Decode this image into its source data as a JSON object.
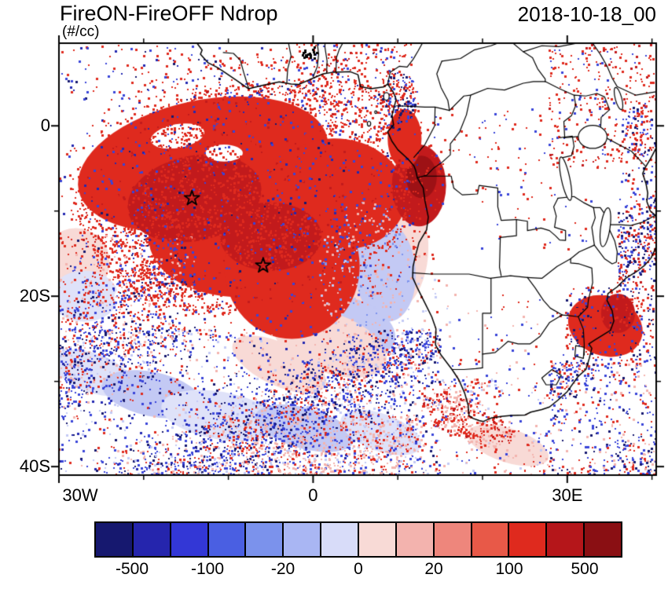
{
  "header": {
    "title": "FireON-FireOFF Ndrop",
    "units": "(#/cc)",
    "timestamp": "2018-10-18_00"
  },
  "chart_data": {
    "type": "heatmap",
    "title": "FireON-FireOFF Ndrop",
    "units": "#/cc",
    "timestamp": "2018-10-18_00",
    "description": "Filled lat-lon map over Africa and the South Atlantic of the difference in cloud droplet number (FireON minus FireOFF). Large positive (red) anomaly over the southeast Atlantic stratocumulus region reaching the Angola/Congo coast; pale pink/lavender crescent on its eastern flank; speckled positive/negative noise over the Southern Ocean storm track, East Africa and the sub-tropics.",
    "map_extent": {
      "lon_min": -30,
      "lon_max": 40.5,
      "lat_min": -41,
      "lat_max": 9.7
    },
    "x_axis": {
      "tick_labels": [
        {
          "label": "30W",
          "lon": -30
        },
        {
          "label": "0",
          "lon": 0
        },
        {
          "label": "30E",
          "lon": 30
        }
      ],
      "minor_ticks_lon": [
        -20,
        -10,
        10,
        20,
        40
      ]
    },
    "y_axis": {
      "tick_labels": [
        {
          "label": "0",
          "lat": 0
        },
        {
          "label": "20S",
          "lat": -20
        },
        {
          "label": "40S",
          "lat": -40
        }
      ],
      "minor_ticks_lat": [
        -10,
        -30
      ]
    },
    "grid": false,
    "legend_position": "bottom",
    "colorbar": {
      "orientation": "horizontal",
      "boundary_values": [
        -500,
        -200,
        -100,
        -50,
        -20,
        -10,
        0,
        10,
        20,
        50,
        100,
        200,
        500
      ],
      "labeled_values": [
        "-500",
        "-100",
        "-20",
        "0",
        "20",
        "100",
        "500"
      ],
      "labeled_boundary_indices": [
        1,
        3,
        5,
        7,
        9,
        11,
        13
      ],
      "segment_colors": [
        "#16186f",
        "#2525ad",
        "#3337d6",
        "#4a5fe2",
        "#7b92ec",
        "#a9b6f3",
        "#d8dcf9",
        "#f8dad6",
        "#f3b3ae",
        "#ee867c",
        "#e85948",
        "#df2a1e",
        "#b5161a",
        "#8a0f13"
      ]
    },
    "markers": [
      {
        "symbol": "open-star",
        "lon": -14.3,
        "lat": -8.5
      },
      {
        "symbol": "open-star",
        "lon": -5.9,
        "lat": -16.4
      }
    ],
    "palette": {
      "red": "#df2a1e",
      "red_dark": "#c21a1c",
      "red_deep": "#9d1115",
      "pink": "#f3b3ae",
      "pink_pale": "#f8dad6",
      "lavender": "#c3c9f4",
      "lavender_pale": "#dfe2f9",
      "blue_light": "#7b92ec",
      "blue": "#3944d8",
      "blue_dark": "#2328b0",
      "navy": "#16186f",
      "black": "#000000",
      "white": "#ffffff"
    },
    "field_regions": {
      "solid": [
        {
          "c": [
            7,
            -13
          ],
          "rad": [
            6.5,
            9.5
          ],
          "rot": 10,
          "color": "pink_pale"
        },
        {
          "c": [
            8.5,
            -17
          ],
          "rad": [
            3.6,
            6
          ],
          "rot": 5,
          "color": "lavender"
        },
        {
          "c": [
            5,
            -23.5
          ],
          "rad": [
            5,
            3
          ],
          "rot": -25,
          "color": "lavender"
        },
        {
          "c": [
            2,
            -25.5
          ],
          "rad": [
            7,
            3.5
          ],
          "rot": -20,
          "color": "pink_pale"
        },
        {
          "c": [
            -4,
            -28
          ],
          "rad": [
            6,
            2.5
          ],
          "rot": -25,
          "color": "pink_pale"
        },
        {
          "c": [
            -28,
            -16
          ],
          "rad": [
            4,
            4
          ],
          "rot": 0,
          "color": "pink_pale"
        },
        {
          "c": [
            -27,
            -20
          ],
          "rad": [
            4,
            3
          ],
          "rot": 0,
          "color": "lavender_pale"
        },
        {
          "c": [
            -26,
            -29
          ],
          "rad": [
            5,
            2.3
          ],
          "rot": -20,
          "color": "lavender_pale"
        },
        {
          "c": [
            -19,
            -31.5
          ],
          "rad": [
            6,
            2.6
          ],
          "rot": -12,
          "color": "lavender"
        },
        {
          "c": [
            -11,
            -34
          ],
          "rad": [
            7,
            2.8
          ],
          "rot": -10,
          "color": "lavender_pale"
        },
        {
          "c": [
            -1,
            -35.5
          ],
          "rad": [
            6,
            2.4
          ],
          "rot": -15,
          "color": "lavender"
        },
        {
          "c": [
            8,
            -36
          ],
          "rad": [
            5,
            2.2
          ],
          "rot": -20,
          "color": "lavender_pale"
        },
        {
          "c": [
            23,
            -37.5
          ],
          "rad": [
            5,
            2
          ],
          "rot": -18,
          "color": "pink_pale"
        },
        {
          "c": [
            -13,
            -4.5
          ],
          "rad": [
            15,
            7.5
          ],
          "rot": 12,
          "color": "red"
        },
        {
          "c": [
            -7,
            -12
          ],
          "rad": [
            12.5,
            8
          ],
          "rot": 8,
          "color": "red"
        },
        {
          "c": [
            -2.5,
            -16.5
          ],
          "rad": [
            8,
            8.5
          ],
          "rot": 0,
          "color": "red"
        },
        {
          "c": [
            3,
            -8
          ],
          "rad": [
            8,
            6.5
          ],
          "rot": -8,
          "color": "red"
        },
        {
          "c": [
            -14,
            -8.5
          ],
          "rad": [
            8,
            5
          ],
          "rot": 12,
          "color": "red_dark"
        },
        {
          "c": [
            -5,
            -13
          ],
          "rad": [
            6,
            4
          ],
          "rot": 0,
          "color": "red_dark"
        },
        {
          "c": [
            12.5,
            -7
          ],
          "rad": [
            3.2,
            4.8
          ],
          "rot": 0,
          "color": "red_dark"
        },
        {
          "c": [
            12.8,
            -6
          ],
          "rad": [
            1.8,
            2.5
          ],
          "rot": 0,
          "color": "red_deep"
        },
        {
          "c": [
            10.8,
            -1.5
          ],
          "rad": [
            2,
            3.5
          ],
          "rot": 0,
          "color": "red"
        },
        {
          "c": [
            -16,
            -1.2
          ],
          "rad": [
            3.2,
            1.4
          ],
          "rot": 10,
          "color": "white"
        },
        {
          "c": [
            -10.5,
            -3.2
          ],
          "rad": [
            2.2,
            1
          ],
          "rot": 0,
          "color": "white"
        },
        {
          "c": [
            -20,
            -20.5
          ],
          "rad": [
            3.5,
            2
          ],
          "rot": -10,
          "color": "white"
        },
        {
          "c": [
            34.5,
            -23.5
          ],
          "rad": [
            4.5,
            3.5
          ],
          "rot": -20,
          "color": "red"
        },
        {
          "c": [
            36,
            -22
          ],
          "rad": [
            2,
            2.3
          ],
          "rot": 0,
          "color": "red_dark"
        }
      ],
      "speckle": [
        {
          "id": "plume-halo-inner",
          "e": {
            "c": [
              -8,
              -8.5
            ],
            "rad": [
              20,
              13.5
            ],
            "rot": 8
          },
          "d": 0.26,
          "w": {
            "red": 0.85,
            "red_dark": 0.1,
            "blue": 0.05
          }
        },
        {
          "id": "plume-halo-outer",
          "e": {
            "c": [
              -8,
              -8.5
            ],
            "rad": [
              23.5,
              16.5
            ],
            "rot": 8
          },
          "d": 0.09,
          "w": {
            "red": 0.78,
            "blue": 0.12,
            "blue_dark": 0.1
          }
        },
        {
          "id": "plume-blue-flecks",
          "e": {
            "c": [
              -8,
              -8.5
            ],
            "rad": [
              18,
              12
            ],
            "rot": 8
          },
          "d": 0.018,
          "w": {
            "blue": 0.5,
            "blue_dark": 0.3,
            "navy": 0.2
          }
        },
        {
          "id": "north-band",
          "r": [
            -30,
            9.7,
            10,
            3
          ],
          "d": 0.06,
          "w": {
            "red": 0.5,
            "blue": 0.25,
            "blue_dark": 0.15,
            "navy": 0.1
          }
        },
        {
          "id": "gulf-top",
          "r": [
            -2,
            9.7,
            12,
            2.2
          ],
          "d": 0.16,
          "w": {
            "red": 0.72,
            "red_dark": 0.1,
            "blue": 0.18
          }
        },
        {
          "id": "black-cluster",
          "e": {
            "c": [
              -0.5,
              8.7
            ],
            "rad": [
              0.9,
              0.8
            ],
            "rot": 0
          },
          "d": 0.5,
          "w": {
            "black": 1
          },
          "sz": 3
        },
        {
          "id": "cameroon-mix",
          "e": {
            "c": [
              9.9,
              3
            ],
            "rad": [
              2.6,
              3.4
            ],
            "rot": 0
          },
          "d": 0.38,
          "w": {
            "red": 0.5,
            "blue": 0.28,
            "navy": 0.22
          }
        },
        {
          "id": "congo-basin",
          "r": [
            14,
            2,
            28,
            -8
          ],
          "d": 0.045,
          "w": {
            "red": 0.7,
            "blue": 0.3
          }
        },
        {
          "id": "east-africa",
          "r": [
            28,
            9.7,
            40.5,
            -5
          ],
          "d": 0.13,
          "w": {
            "red": 0.68,
            "red_dark": 0.12,
            "blue": 0.2
          }
        },
        {
          "id": "east-cluster",
          "e": {
            "c": [
              38.5,
              -0.5
            ],
            "rad": [
              2.2,
              3.2
            ],
            "rot": 0
          },
          "d": 0.3,
          "w": {
            "red": 0.5,
            "blue": 0.3,
            "navy": 0.2
          }
        },
        {
          "id": "right-edge",
          "r": [
            36,
            -5,
            40.5,
            -20
          ],
          "d": 0.28,
          "w": {
            "blue": 0.33,
            "navy": 0.2,
            "red": 0.35,
            "red_dark": 0.12
          },
          "st": 1
        },
        {
          "id": "se-coast",
          "r": [
            30,
            -19,
            40.5,
            -28
          ],
          "d": 0.22,
          "w": {
            "red": 0.55,
            "blue": 0.25,
            "navy": 0.2
          }
        },
        {
          "id": "se-corner",
          "r": [
            28,
            -28,
            40.5,
            -41
          ],
          "d": 0.3,
          "w": {
            "blue": 0.4,
            "navy": 0.15,
            "red": 0.3,
            "pink": 0.15
          },
          "st": 1
        },
        {
          "id": "south-of-sa",
          "r": [
            15,
            -30,
            28,
            -41
          ],
          "d": 0.16,
          "w": {
            "red": 0.3,
            "pink": 0.3,
            "blue": 0.25,
            "lavender": 0.15
          },
          "st": 1
        },
        {
          "id": "southern-ocean",
          "r": [
            -30,
            -24,
            15,
            -41
          ],
          "d": 0.3,
          "w": {
            "blue": 0.3,
            "navy": 0.15,
            "blue_dark": 0.1,
            "red": 0.2,
            "pink": 0.15,
            "lavender": 0.1
          },
          "st": 1
        },
        {
          "id": "sw-of-plume",
          "r": [
            -30,
            -13,
            -14,
            -24
          ],
          "d": 0.2,
          "w": {
            "red": 0.45,
            "blue": 0.3,
            "navy": 0.1,
            "pink": 0.15
          },
          "st": 1
        },
        {
          "id": "pink-band-south",
          "r": [
            -12,
            -34,
            13,
            -41
          ],
          "d": 0.24,
          "w": {
            "pink": 0.45,
            "red": 0.3,
            "lavender": 0.15,
            "blue": 0.1
          },
          "st": 1
        },
        {
          "id": "interior-sparse",
          "r": [
            16,
            -20,
            30,
            -30
          ],
          "d": 0.025,
          "w": {
            "red": 0.4,
            "blue": 0.3,
            "pink": 0.3
          }
        },
        {
          "id": "zambia-sparse",
          "r": [
            20,
            -8,
            33,
            -15
          ],
          "d": 0.03,
          "w": {
            "red": 0.6,
            "blue": 0.4
          }
        },
        {
          "id": "crescent-texture",
          "e": {
            "c": [
              6,
              -17
            ],
            "rad": [
              5.5,
              8.5
            ],
            "rot": 0
          },
          "d": 0.12,
          "w": {
            "pink": 0.4,
            "lavender": 0.3,
            "blue_light": 0.3
          }
        },
        {
          "id": "namib-coast",
          "r": [
            10,
            -15,
            16,
            -24
          ],
          "d": 0.05,
          "w": {
            "pink": 0.4,
            "lavender": 0.4,
            "red": 0.2
          }
        },
        {
          "id": "red-streak-sa",
          "e": {
            "c": [
              18,
              -34.5
            ],
            "rad": [
              6,
              2.4
            ],
            "rot": -22
          },
          "d": 0.45,
          "w": {
            "red": 0.5,
            "pink": 0.35,
            "red_dark": 0.15
          }
        }
      ]
    }
  }
}
